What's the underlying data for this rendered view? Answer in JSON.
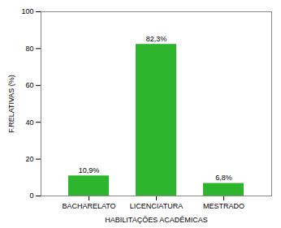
{
  "chart_data": {
    "type": "bar",
    "xlabel": "HABILITAÇÕES ACADÊMICAS",
    "ylabel": "F.RELATIVAS (%)",
    "categories": [
      "BACHARELATO",
      "LICENCIATURA",
      "MESTRADO"
    ],
    "values": [
      10.9,
      82.3,
      6.8
    ],
    "value_labels": [
      "10,9%",
      "82,3%",
      "6,8%"
    ],
    "color": "#2db52d",
    "ylim": [
      0,
      100
    ],
    "yticks": [
      0,
      20,
      40,
      60,
      80,
      100
    ],
    "grid": false,
    "data_labels": true
  }
}
